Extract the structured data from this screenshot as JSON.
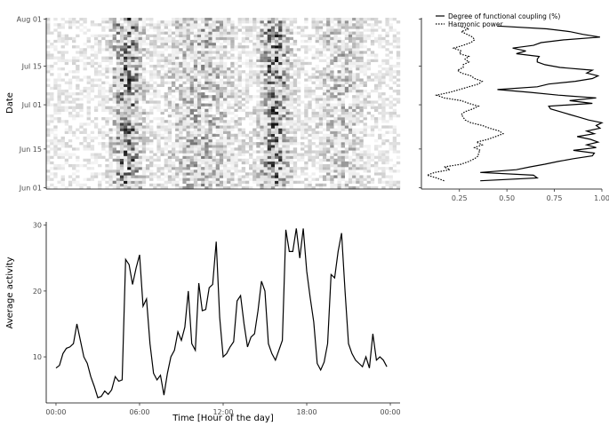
{
  "chart_data": [
    {
      "type": "heatmap",
      "panel": "actogram",
      "ylabel": "Date",
      "xlabel": "",
      "x_range_hours": [
        0,
        24
      ],
      "y_range_days_from_start": [
        0,
        62
      ],
      "y_ticks": [
        {
          "label": "Jun 01",
          "day": 0
        },
        {
          "label": "Jun 15",
          "day": 14
        },
        {
          "label": "Jul 01",
          "day": 30
        },
        {
          "label": "Jul 15",
          "day": 44
        },
        {
          "label": "Aug 01",
          "day": 61
        }
      ],
      "hour_bins": 96,
      "day_rows": 62,
      "activity_peaks_hours": [
        5.5,
        15.5
      ],
      "color_low": "#ffffff",
      "color_high": "#000000"
    },
    {
      "type": "line",
      "panel": "coupling",
      "orientation": "vertical",
      "xlim": [
        0.05,
        1.0
      ],
      "x_ticks": [
        "0.25",
        "0.50",
        "0.75",
        "1.00"
      ],
      "x_tick_values": [
        0.25,
        0.5,
        0.75,
        1.0
      ],
      "ylim": [
        0,
        62
      ],
      "legend_position": "top",
      "series": [
        {
          "name": "Degree of functional coupling (%)",
          "style": "solid",
          "days": [
            3,
            4,
            5,
            6,
            7,
            8,
            9,
            10,
            11,
            12,
            13,
            14,
            15,
            16,
            17,
            18,
            19,
            20,
            21,
            22,
            23,
            24,
            25,
            26,
            27,
            28,
            29,
            30,
            31,
            32,
            33,
            34,
            35,
            36,
            37,
            38,
            39,
            40,
            41,
            42,
            43,
            44,
            45,
            46,
            47,
            48,
            49,
            50,
            51,
            52,
            53,
            54,
            55,
            56,
            57,
            58,
            59
          ],
          "values": [
            0.36,
            0.66,
            0.64,
            0.36,
            0.55,
            0.62,
            0.7,
            0.77,
            0.85,
            0.95,
            0.96,
            0.85,
            0.97,
            0.92,
            0.98,
            0.94,
            0.87,
            0.96,
            0.92,
            0.99,
            0.97,
            1.0,
            0.93,
            0.88,
            0.83,
            0.78,
            0.73,
            0.72,
            0.95,
            0.83,
            0.97,
            0.77,
            0.62,
            0.45,
            0.66,
            0.72,
            0.86,
            0.95,
            0.98,
            0.92,
            0.95,
            0.78,
            0.7,
            0.66,
            0.66,
            0.67,
            0.55,
            0.6,
            0.53,
            0.64,
            0.68,
            0.8,
            0.99,
            0.9,
            0.83,
            0.71,
            0.45
          ]
        },
        {
          "name": "Harmonic power",
          "style": "dotted",
          "days": [
            3,
            4,
            5,
            6,
            7,
            8,
            9,
            10,
            11,
            12,
            13,
            14,
            15,
            16,
            17,
            18,
            19,
            20,
            21,
            22,
            23,
            24,
            25,
            26,
            27,
            28,
            29,
            30,
            31,
            32,
            33,
            34,
            35,
            36,
            37,
            38,
            39,
            40,
            41,
            42,
            43,
            44,
            45,
            46,
            47,
            48,
            49,
            50,
            51,
            52,
            53,
            54,
            55,
            56,
            57,
            58,
            59
          ],
          "values": [
            0.17,
            0.13,
            0.08,
            0.12,
            0.2,
            0.17,
            0.26,
            0.3,
            0.33,
            0.35,
            0.35,
            0.36,
            0.33,
            0.37,
            0.34,
            0.4,
            0.44,
            0.48,
            0.46,
            0.41,
            0.37,
            0.31,
            0.28,
            0.27,
            0.26,
            0.28,
            0.32,
            0.35,
            0.3,
            0.26,
            0.17,
            0.13,
            0.2,
            0.25,
            0.3,
            0.35,
            0.37,
            0.33,
            0.31,
            0.26,
            0.24,
            0.27,
            0.27,
            0.3,
            0.28,
            0.3,
            0.25,
            0.26,
            0.22,
            0.27,
            0.31,
            0.33,
            0.32,
            0.29,
            0.26,
            0.3,
            0.25
          ]
        }
      ]
    },
    {
      "type": "line",
      "panel": "daily-profile",
      "xlabel": "Time [Hour of the day]",
      "ylabel": "Average activity",
      "xlim": [
        0,
        24
      ],
      "ylim": [
        3,
        30.5
      ],
      "x_ticks": [
        "00:00",
        "06:00",
        "12:00",
        "18:00",
        "00:00"
      ],
      "x_tick_values": [
        0,
        6,
        12,
        18,
        24
      ],
      "y_ticks": [
        "10",
        "20",
        "30"
      ],
      "y_tick_values": [
        10,
        20,
        30
      ],
      "grid": false,
      "series": [
        {
          "name": "",
          "style": "solid",
          "x": [
            0.0,
            0.25,
            0.5,
            0.75,
            1.0,
            1.25,
            1.5,
            1.75,
            2.0,
            2.25,
            2.5,
            2.75,
            3.0,
            3.25,
            3.5,
            3.75,
            4.0,
            4.25,
            4.5,
            4.75,
            5.0,
            5.25,
            5.5,
            5.75,
            6.0,
            6.25,
            6.5,
            6.75,
            7.0,
            7.25,
            7.5,
            7.75,
            8.0,
            8.25,
            8.5,
            8.75,
            9.0,
            9.25,
            9.5,
            9.75,
            10.0,
            10.25,
            10.5,
            10.75,
            11.0,
            11.25,
            11.5,
            11.75,
            12.0,
            12.25,
            12.5,
            12.75,
            13.0,
            13.25,
            13.5,
            13.75,
            14.0,
            14.25,
            14.5,
            14.75,
            15.0,
            15.25,
            15.5,
            15.75,
            16.0,
            16.25,
            16.5,
            16.75,
            17.0,
            17.25,
            17.5,
            17.75,
            18.0,
            18.25,
            18.5,
            18.75,
            19.0,
            19.25,
            19.5,
            19.75,
            20.0,
            20.25,
            20.5,
            20.75,
            21.0,
            21.25,
            21.5,
            21.75,
            22.0,
            22.25,
            22.5,
            22.75,
            23.0,
            23.25,
            23.5,
            23.75
          ],
          "values": [
            8.3,
            8.7,
            10.5,
            11.3,
            11.5,
            12.0,
            15.0,
            12.5,
            10.0,
            9.0,
            7.0,
            5.5,
            3.8,
            4.0,
            4.8,
            4.3,
            5.0,
            7.0,
            6.3,
            6.5,
            24.8,
            24.0,
            21.0,
            23.5,
            25.5,
            17.7,
            18.8,
            12.0,
            7.5,
            6.5,
            7.2,
            4.2,
            7.5,
            10.0,
            11.0,
            13.8,
            12.5,
            14.5,
            20.0,
            12.0,
            11.0,
            21.2,
            17.0,
            17.2,
            20.5,
            21.0,
            27.5,
            16.0,
            10.0,
            10.5,
            11.5,
            12.3,
            18.5,
            19.3,
            15.0,
            11.5,
            13.0,
            13.5,
            17.0,
            21.5,
            20.0,
            12.0,
            10.5,
            9.5,
            11.0,
            12.5,
            29.3,
            26.0,
            26.0,
            29.5,
            25.0,
            29.5,
            23.0,
            19.0,
            15.3,
            9.0,
            8.0,
            9.2,
            12.0,
            22.5,
            22.0,
            26.0,
            28.8,
            20.0,
            12.0,
            10.5,
            9.5,
            9.0,
            8.5,
            10.0,
            8.3,
            13.5,
            9.5,
            10.0,
            9.5,
            8.5
          ]
        }
      ]
    }
  ],
  "legend": {
    "items": [
      {
        "label": "Degree of functional coupling (%)",
        "style": "solid"
      },
      {
        "label": "Harmonic power",
        "style": "dotted"
      }
    ]
  }
}
